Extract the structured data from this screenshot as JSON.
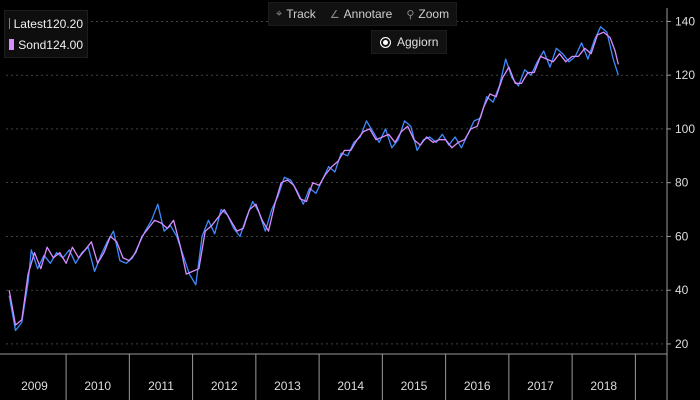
{
  "toolbar": {
    "track_label": "Track",
    "annotate_label": "Annotare",
    "zoom_label": "Zoom",
    "track_icon": "crosshair-icon",
    "annotate_icon": "pencil-icon",
    "zoom_icon": "magnifier-icon"
  },
  "refresh": {
    "label": "Aggiorn",
    "icon": "radio-dot-icon"
  },
  "legend": {
    "items": [
      {
        "name": "Latest",
        "value": "120.20",
        "color": "#3d8bff"
      },
      {
        "name": "Sond",
        "value": "124.00",
        "color": "#d98cff"
      }
    ]
  },
  "colors": {
    "background": "#000000",
    "grid": "#6a6a6a",
    "axis": "#9a9a9a",
    "text": "#dddddd"
  },
  "chart_data": {
    "type": "line",
    "x_unit": "year",
    "xlim": [
      2008.3,
      2018.75
    ],
    "ylim": [
      17,
      145
    ],
    "yticks": [
      20,
      40,
      60,
      80,
      100,
      120,
      140
    ],
    "xtick_labels": [
      "2009",
      "2010",
      "2011",
      "2012",
      "2013",
      "2014",
      "2015",
      "2016",
      "2017",
      "2018"
    ],
    "grid": "horizontal dashed",
    "y_axis_side": "right",
    "legend_position": "top-left",
    "series": [
      {
        "name": "Latest",
        "color": "#3d8bff",
        "points": [
          [
            2008.35,
            38
          ],
          [
            2008.45,
            25
          ],
          [
            2008.55,
            28
          ],
          [
            2008.65,
            43
          ],
          [
            2008.7,
            55
          ],
          [
            2008.8,
            48
          ],
          [
            2008.9,
            53
          ],
          [
            2009.0,
            50
          ],
          [
            2009.1,
            54
          ],
          [
            2009.2,
            52
          ],
          [
            2009.3,
            55
          ],
          [
            2009.4,
            50
          ],
          [
            2009.5,
            54
          ],
          [
            2009.6,
            56
          ],
          [
            2009.7,
            47
          ],
          [
            2009.8,
            53
          ],
          [
            2009.9,
            58
          ],
          [
            2010.0,
            62
          ],
          [
            2010.1,
            51
          ],
          [
            2010.2,
            50
          ],
          [
            2010.3,
            52
          ],
          [
            2010.4,
            57
          ],
          [
            2010.5,
            62
          ],
          [
            2010.6,
            66
          ],
          [
            2010.7,
            72
          ],
          [
            2010.8,
            62
          ],
          [
            2010.9,
            64
          ],
          [
            2011.0,
            60
          ],
          [
            2011.1,
            53
          ],
          [
            2011.2,
            46
          ],
          [
            2011.3,
            42
          ],
          [
            2011.4,
            60
          ],
          [
            2011.5,
            66
          ],
          [
            2011.6,
            61
          ],
          [
            2011.7,
            70
          ],
          [
            2011.8,
            68
          ],
          [
            2011.9,
            63
          ],
          [
            2012.0,
            60
          ],
          [
            2012.1,
            67
          ],
          [
            2012.2,
            73
          ],
          [
            2012.3,
            69
          ],
          [
            2012.4,
            62
          ],
          [
            2012.5,
            70
          ],
          [
            2012.6,
            75
          ],
          [
            2012.7,
            82
          ],
          [
            2012.8,
            81
          ],
          [
            2012.9,
            77
          ],
          [
            2013.0,
            72
          ],
          [
            2013.1,
            78
          ],
          [
            2013.2,
            76
          ],
          [
            2013.3,
            81
          ],
          [
            2013.4,
            86
          ],
          [
            2013.5,
            84
          ],
          [
            2013.6,
            91
          ],
          [
            2013.7,
            90
          ],
          [
            2013.8,
            95
          ],
          [
            2013.9,
            97
          ],
          [
            2014.0,
            103
          ],
          [
            2014.1,
            99
          ],
          [
            2014.2,
            95
          ],
          [
            2014.3,
            100
          ],
          [
            2014.4,
            93
          ],
          [
            2014.5,
            96
          ],
          [
            2014.6,
            103
          ],
          [
            2014.7,
            101
          ],
          [
            2014.8,
            92
          ],
          [
            2014.9,
            96
          ],
          [
            2015.0,
            97
          ],
          [
            2015.1,
            95
          ],
          [
            2015.2,
            98
          ],
          [
            2015.3,
            94
          ],
          [
            2015.4,
            97
          ],
          [
            2015.5,
            93
          ],
          [
            2015.6,
            98
          ],
          [
            2015.7,
            103
          ],
          [
            2015.8,
            104
          ],
          [
            2015.9,
            112
          ],
          [
            2016.0,
            110
          ],
          [
            2016.1,
            116
          ],
          [
            2016.2,
            126
          ],
          [
            2016.3,
            119
          ],
          [
            2016.4,
            116
          ],
          [
            2016.5,
            122
          ],
          [
            2016.6,
            120
          ],
          [
            2016.7,
            125
          ],
          [
            2016.8,
            129
          ],
          [
            2016.9,
            123
          ],
          [
            2017.0,
            130
          ],
          [
            2017.1,
            128
          ],
          [
            2017.2,
            125
          ],
          [
            2017.3,
            127
          ],
          [
            2017.4,
            132
          ],
          [
            2017.5,
            126
          ],
          [
            2017.6,
            133
          ],
          [
            2017.7,
            138
          ],
          [
            2017.8,
            136
          ],
          [
            2017.9,
            126
          ],
          [
            2017.98,
            120
          ]
        ]
      },
      {
        "name": "Sond",
        "color": "#d98cff",
        "points": [
          [
            2008.35,
            40
          ],
          [
            2008.45,
            27
          ],
          [
            2008.55,
            29
          ],
          [
            2008.65,
            46
          ],
          [
            2008.75,
            54
          ],
          [
            2008.85,
            48
          ],
          [
            2008.95,
            56
          ],
          [
            2009.05,
            52
          ],
          [
            2009.15,
            54
          ],
          [
            2009.25,
            50
          ],
          [
            2009.35,
            56
          ],
          [
            2009.45,
            52
          ],
          [
            2009.55,
            55
          ],
          [
            2009.65,
            58
          ],
          [
            2009.75,
            50
          ],
          [
            2009.85,
            54
          ],
          [
            2009.95,
            60
          ],
          [
            2010.05,
            58
          ],
          [
            2010.15,
            52
          ],
          [
            2010.25,
            51
          ],
          [
            2010.35,
            54
          ],
          [
            2010.45,
            60
          ],
          [
            2010.55,
            63
          ],
          [
            2010.65,
            66
          ],
          [
            2010.75,
            65
          ],
          [
            2010.85,
            63
          ],
          [
            2010.95,
            66
          ],
          [
            2011.05,
            57
          ],
          [
            2011.15,
            46
          ],
          [
            2011.25,
            47
          ],
          [
            2011.35,
            48
          ],
          [
            2011.45,
            62
          ],
          [
            2011.55,
            64
          ],
          [
            2011.65,
            67
          ],
          [
            2011.75,
            70
          ],
          [
            2011.85,
            66
          ],
          [
            2011.95,
            62
          ],
          [
            2012.05,
            63
          ],
          [
            2012.15,
            70
          ],
          [
            2012.25,
            72
          ],
          [
            2012.35,
            66
          ],
          [
            2012.45,
            62
          ],
          [
            2012.55,
            72
          ],
          [
            2012.65,
            80
          ],
          [
            2012.75,
            81
          ],
          [
            2012.85,
            79
          ],
          [
            2012.95,
            74
          ],
          [
            2013.05,
            73
          ],
          [
            2013.15,
            80
          ],
          [
            2013.25,
            79
          ],
          [
            2013.35,
            83
          ],
          [
            2013.45,
            86
          ],
          [
            2013.55,
            88
          ],
          [
            2013.65,
            92
          ],
          [
            2013.75,
            92
          ],
          [
            2013.85,
            96
          ],
          [
            2013.95,
            99
          ],
          [
            2014.05,
            100
          ],
          [
            2014.15,
            96
          ],
          [
            2014.25,
            97
          ],
          [
            2014.35,
            98
          ],
          [
            2014.45,
            95
          ],
          [
            2014.55,
            99
          ],
          [
            2014.65,
            101
          ],
          [
            2014.75,
            96
          ],
          [
            2014.85,
            94
          ],
          [
            2014.95,
            97
          ],
          [
            2015.05,
            95
          ],
          [
            2015.15,
            96
          ],
          [
            2015.25,
            96
          ],
          [
            2015.35,
            93
          ],
          [
            2015.45,
            95
          ],
          [
            2015.55,
            96
          ],
          [
            2015.65,
            100
          ],
          [
            2015.75,
            101
          ],
          [
            2015.85,
            108
          ],
          [
            2015.95,
            113
          ],
          [
            2016.05,
            112
          ],
          [
            2016.15,
            119
          ],
          [
            2016.25,
            123
          ],
          [
            2016.35,
            117
          ],
          [
            2016.45,
            117
          ],
          [
            2016.55,
            121
          ],
          [
            2016.65,
            121
          ],
          [
            2016.75,
            127
          ],
          [
            2016.85,
            126
          ],
          [
            2016.95,
            125
          ],
          [
            2017.05,
            128
          ],
          [
            2017.15,
            125
          ],
          [
            2017.25,
            127
          ],
          [
            2017.35,
            127
          ],
          [
            2017.45,
            130
          ],
          [
            2017.55,
            128
          ],
          [
            2017.65,
            135
          ],
          [
            2017.75,
            136
          ],
          [
            2017.85,
            134
          ],
          [
            2017.93,
            129
          ],
          [
            2017.98,
            124
          ]
        ]
      }
    ]
  }
}
